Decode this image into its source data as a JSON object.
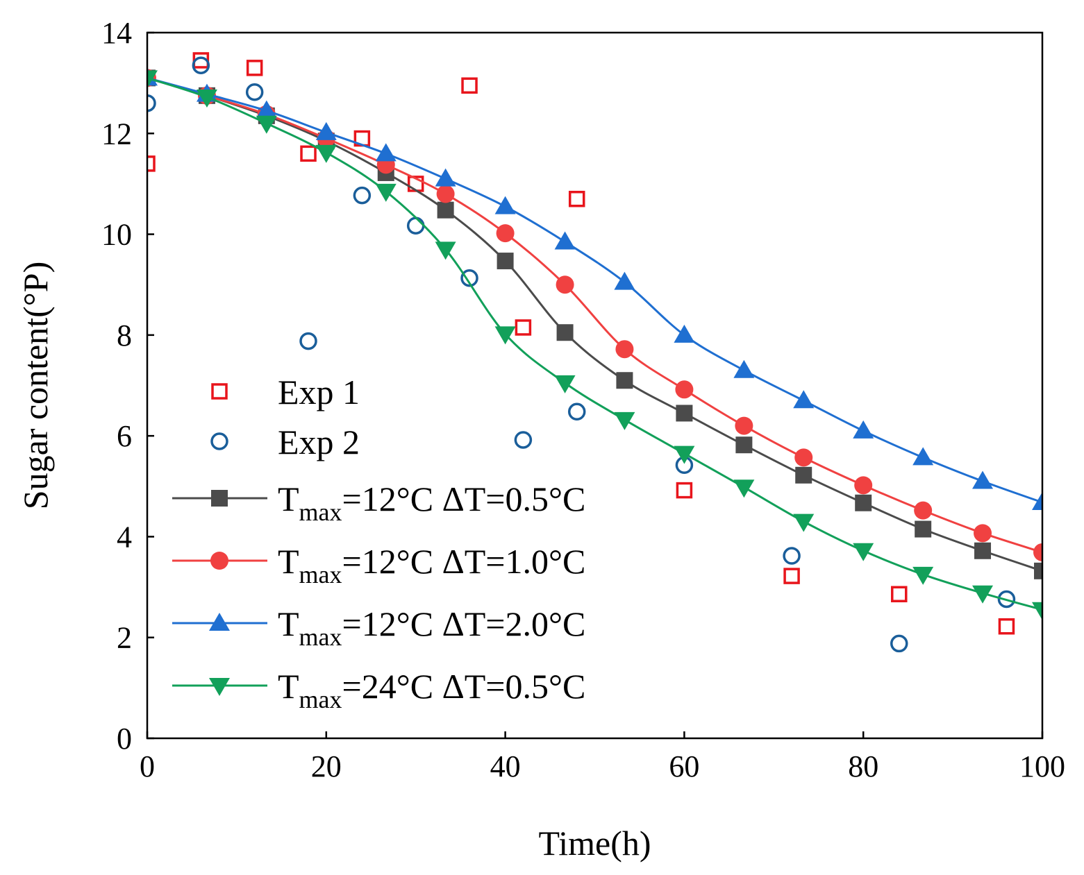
{
  "chart_data": {
    "type": "scatter",
    "xlabel": "Time(h)",
    "ylabel": "Sugar content(°P)",
    "xlim": [
      0,
      100
    ],
    "ylim": [
      0,
      14
    ],
    "xticks": [
      0,
      20,
      40,
      60,
      80,
      100
    ],
    "yticks": [
      0,
      2,
      4,
      6,
      8,
      10,
      12,
      14
    ],
    "legend_position": "left-middle",
    "series": [
      {
        "name": "Exp 1",
        "kind": "scatter",
        "marker": "square-open",
        "color": "#e8151c",
        "x": [
          0,
          6,
          12,
          18,
          24,
          30,
          36,
          42,
          48,
          60,
          72,
          84,
          96
        ],
        "y": [
          11.4,
          13.45,
          13.3,
          11.6,
          11.9,
          11.0,
          12.95,
          8.15,
          10.7,
          4.92,
          3.22,
          2.86,
          2.22
        ]
      },
      {
        "name": "Exp 2",
        "kind": "scatter",
        "marker": "circle-open",
        "color": "#1a5e9a",
        "x": [
          0,
          6,
          12,
          18,
          24,
          30,
          36,
          42,
          48,
          60,
          72,
          84,
          96
        ],
        "y": [
          12.6,
          13.35,
          12.82,
          7.88,
          10.77,
          10.17,
          9.13,
          5.92,
          6.48,
          5.42,
          3.62,
          1.88,
          2.76
        ]
      },
      {
        "name": "Tmax=12°C ΔT=0.5°C",
        "legend_main": "T",
        "legend_sub": "max",
        "legend_rest": "=12°C ΔT=0.5°C",
        "kind": "line",
        "marker": "square-filled",
        "color": "#4b4b4b",
        "x": [
          0,
          6.67,
          13.33,
          20,
          26.67,
          33.33,
          40,
          46.67,
          53.33,
          60,
          66.67,
          73.33,
          80,
          86.67,
          93.33,
          100
        ],
        "y": [
          13.1,
          12.75,
          12.35,
          11.85,
          11.22,
          10.48,
          9.47,
          8.05,
          7.1,
          6.45,
          5.82,
          5.22,
          4.67,
          4.15,
          3.72,
          3.32
        ]
      },
      {
        "name": "Tmax=12°C ΔT=1.0°C",
        "legend_main": "T",
        "legend_sub": "max",
        "legend_rest": "=12°C ΔT=1.0°C",
        "kind": "line",
        "marker": "circle-filled",
        "color": "#f04141",
        "x": [
          0,
          6.67,
          13.33,
          20,
          26.67,
          33.33,
          40,
          46.67,
          53.33,
          60,
          66.67,
          73.33,
          80,
          86.67,
          93.33,
          100
        ],
        "y": [
          13.1,
          12.75,
          12.38,
          11.9,
          11.38,
          10.8,
          10.02,
          9.0,
          7.72,
          6.92,
          6.2,
          5.57,
          5.02,
          4.52,
          4.07,
          3.69
        ]
      },
      {
        "name": "Tmax=12°C ΔT=2.0°C",
        "legend_main": "T",
        "legend_sub": "max",
        "legend_rest": "=12°C ΔT=2.0°C",
        "kind": "line",
        "marker": "triangle-up-filled",
        "color": "#1f6fd1",
        "x": [
          0,
          6.67,
          13.33,
          20,
          26.67,
          33.33,
          40,
          46.67,
          53.33,
          60,
          66.67,
          73.33,
          80,
          86.67,
          93.33,
          100
        ],
        "y": [
          13.1,
          12.78,
          12.45,
          12.02,
          11.6,
          11.1,
          10.55,
          9.85,
          9.05,
          8.0,
          7.3,
          6.7,
          6.1,
          5.57,
          5.1,
          4.68
        ]
      },
      {
        "name": "Tmax=24°C ΔT=0.5°C",
        "legend_main": "T",
        "legend_sub": "max",
        "legend_rest": "=24°C ΔT=0.5°C",
        "kind": "line",
        "marker": "triangle-down-filled",
        "color": "#12a05a",
        "x": [
          0,
          6.67,
          13.33,
          20,
          26.67,
          33.33,
          40,
          46.67,
          53.33,
          60,
          66.67,
          73.33,
          80,
          86.67,
          93.33,
          100
        ],
        "y": [
          13.1,
          12.72,
          12.2,
          11.62,
          10.85,
          9.7,
          8.02,
          7.05,
          6.32,
          5.65,
          4.98,
          4.3,
          3.72,
          3.25,
          2.88,
          2.55
        ]
      }
    ]
  }
}
